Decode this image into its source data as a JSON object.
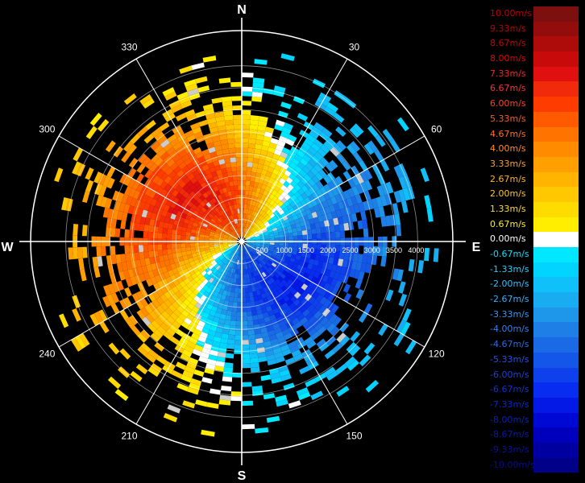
{
  "chart_data": {
    "type": "heatmap",
    "subtype": "polar-velocity-ppi",
    "cardinal_labels": {
      "N": "N",
      "E": "E",
      "S": "S",
      "W": "W"
    },
    "azimuth_labels": [
      "30",
      "60",
      "120",
      "150",
      "210",
      "240",
      "300",
      "330"
    ],
    "azimuths_deg": [
      30,
      60,
      120,
      150,
      210,
      240,
      300,
      330
    ],
    "range_labels": [
      "500",
      "1000",
      "1500",
      "2000",
      "2500",
      "3000",
      "3500",
      "4000"
    ],
    "range_values": [
      500,
      1000,
      1500,
      2000,
      2500,
      3000,
      3500,
      4000
    ],
    "range_max": 4800,
    "velocity_range": [
      -10,
      10
    ],
    "pattern": {
      "description_field": false,
      "positive_peak_azimuth_deg": 300,
      "negative_peak_azimuth_deg": 120,
      "solid_echo_radius": 2800,
      "scatter_echo_radius": 4700
    },
    "legend": [
      {
        "label": "10.00m/s",
        "color": "#7d0f0f",
        "text_color": "#c00000"
      },
      {
        "label": "9.33m/s",
        "color": "#930d0d",
        "text_color": "#c00000"
      },
      {
        "label": "8.67m/s",
        "color": "#ae0b0b",
        "text_color": "#c80000"
      },
      {
        "label": "8.00m/s",
        "color": "#c80a0a",
        "text_color": "#e00000"
      },
      {
        "label": "7.33m/s",
        "color": "#e01010",
        "text_color": "#ff2020"
      },
      {
        "label": "6.67m/s",
        "color": "#f02a0a",
        "text_color": "#ff3030"
      },
      {
        "label": "6.00m/s",
        "color": "#ff3c00",
        "text_color": "#ff4020"
      },
      {
        "label": "5.33m/s",
        "color": "#ff5a00",
        "text_color": "#ff5a20"
      },
      {
        "label": "4.67m/s",
        "color": "#ff7400",
        "text_color": "#ff7020"
      },
      {
        "label": "4.00m/s",
        "color": "#ff8c00",
        "text_color": "#ff8c20"
      },
      {
        "label": "3.33m/s",
        "color": "#ffa000",
        "text_color": "#ffa020"
      },
      {
        "label": "2.67m/s",
        "color": "#ffb400",
        "text_color": "#ffb420"
      },
      {
        "label": "2.00m/s",
        "color": "#ffc800",
        "text_color": "#ffc820"
      },
      {
        "label": "1.33m/s",
        "color": "#ffdc00",
        "text_color": "#ffdc20"
      },
      {
        "label": "0.67m/s",
        "color": "#ffee00",
        "text_color": "#ffee20"
      },
      {
        "label": "0.00m/s",
        "color": "#ffffff",
        "text_color": "#ffffff"
      },
      {
        "label": "-0.67m/s",
        "color": "#00e8ff",
        "text_color": "#00e0ff"
      },
      {
        "label": "-1.33m/s",
        "color": "#00d4ff",
        "text_color": "#20d0ff"
      },
      {
        "label": "-2.00m/s",
        "color": "#10c0f8",
        "text_color": "#30c0ff"
      },
      {
        "label": "-2.67m/s",
        "color": "#18acf0",
        "text_color": "#30b0ff"
      },
      {
        "label": "-3.33m/s",
        "color": "#1e96ea",
        "text_color": "#3098f8"
      },
      {
        "label": "-4.00m/s",
        "color": "#1e80e6",
        "text_color": "#3080f0"
      },
      {
        "label": "-4.67m/s",
        "color": "#1a6ae6",
        "text_color": "#2868e8"
      },
      {
        "label": "-5.33m/s",
        "color": "#1456e8",
        "text_color": "#2050e8"
      },
      {
        "label": "-6.00m/s",
        "color": "#0e40ec",
        "text_color": "#1840e0"
      },
      {
        "label": "-6.67m/s",
        "color": "#082cf0",
        "text_color": "#1030d8"
      },
      {
        "label": "-7.33m/s",
        "color": "#0418e6",
        "text_color": "#0828d0"
      },
      {
        "label": "-8.00m/s",
        "color": "#0008d4",
        "text_color": "#0820c0"
      },
      {
        "label": "-8.67m/s",
        "color": "#0000bc",
        "text_color": "#0818b0"
      },
      {
        "label": "-9.33m/s",
        "color": "#0000a0",
        "text_color": "#0810a0"
      },
      {
        "label": "-10.00m/s",
        "color": "#000088",
        "text_color": "#080c90"
      }
    ]
  }
}
